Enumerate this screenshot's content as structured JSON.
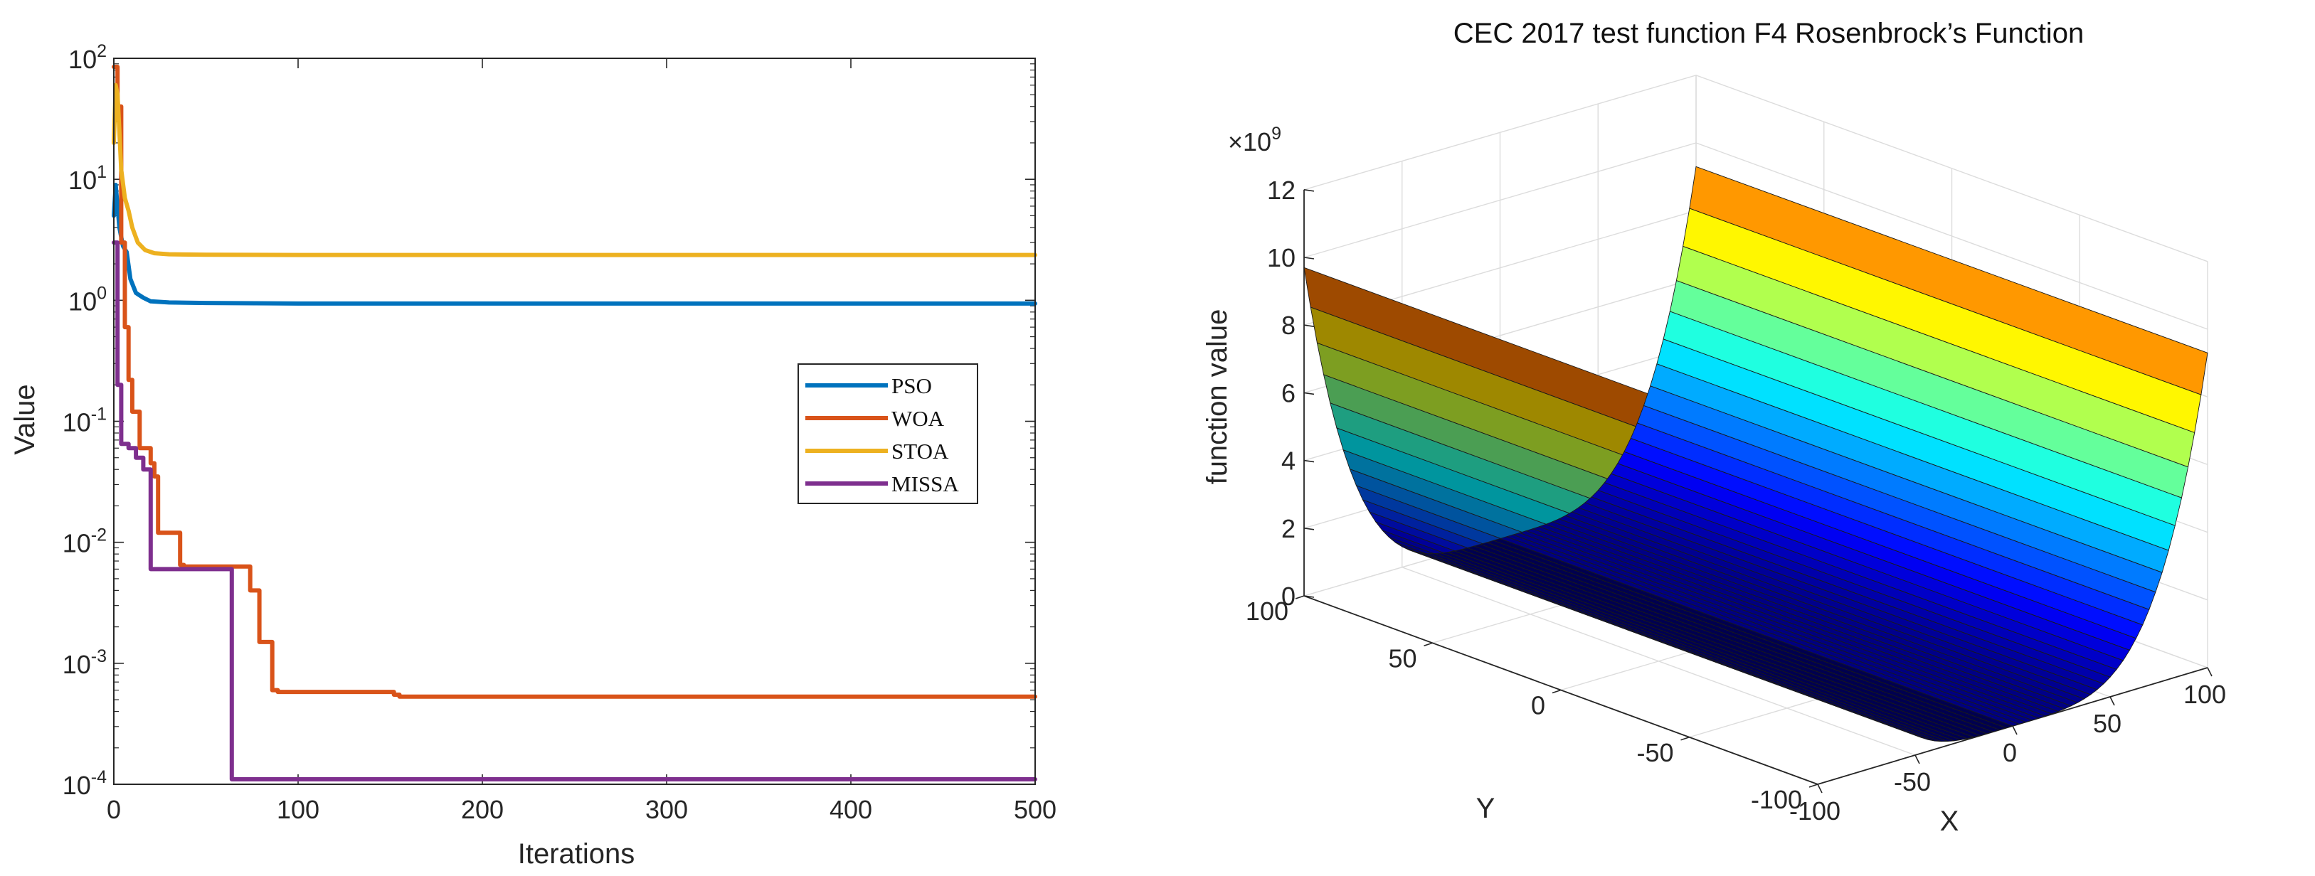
{
  "colors": {
    "PSO": "#0072BD",
    "WOA": "#D95319",
    "STOA": "#EDB120",
    "MISSA": "#7E2F8E"
  },
  "chart_data": [
    {
      "type": "line",
      "title": "",
      "xlabel": "Iterations",
      "ylabel": "Value",
      "yscale": "log",
      "xlim": [
        0,
        500
      ],
      "ylim": [
        0.0001,
        100
      ],
      "x_ticks": [
        0,
        100,
        200,
        300,
        400,
        500
      ],
      "x_tick_labels": [
        "0",
        "100",
        "200",
        "300",
        "400",
        "500"
      ],
      "y_ticks": [
        0.0001,
        0.001,
        0.01,
        0.1,
        1,
        10,
        100
      ],
      "y_tick_labels": [
        {
          "base": "10",
          "exp": "-4"
        },
        {
          "base": "10",
          "exp": "-3"
        },
        {
          "base": "10",
          "exp": "-2"
        },
        {
          "base": "10",
          "exp": "-1"
        },
        {
          "base": "10",
          "exp": "0"
        },
        {
          "base": "10",
          "exp": "1"
        },
        {
          "base": "10",
          "exp": "2"
        }
      ],
      "legend": {
        "position": "center-right"
      },
      "series": [
        {
          "name": "PSO",
          "step": false,
          "x": [
            0,
            1,
            3,
            5,
            7,
            9,
            12,
            16,
            20,
            30,
            50,
            100,
            200,
            300,
            400,
            500
          ],
          "y": [
            5,
            9,
            4,
            2.8,
            2.5,
            1.5,
            1.15,
            1.05,
            0.98,
            0.96,
            0.95,
            0.94,
            0.94,
            0.94,
            0.94,
            0.94
          ]
        },
        {
          "name": "WOA",
          "step": true,
          "x": [
            0,
            2,
            4,
            6,
            8,
            10,
            14,
            20,
            22,
            24,
            36,
            38,
            74,
            79,
            86,
            89,
            152,
            155,
            500
          ],
          "y": [
            85,
            40,
            3,
            0.6,
            0.22,
            0.12,
            0.06,
            0.045,
            0.035,
            0.012,
            0.0065,
            0.0063,
            0.004,
            0.0015,
            0.0006,
            0.00058,
            0.00055,
            0.00053,
            0.00053
          ]
        },
        {
          "name": "STOA",
          "step": false,
          "x": [
            0,
            1,
            2,
            3,
            4,
            6,
            8,
            10,
            13,
            17,
            22,
            30,
            50,
            100,
            200,
            300,
            400,
            500
          ],
          "y": [
            20,
            60,
            50,
            25,
            12,
            7,
            5.5,
            4,
            3,
            2.6,
            2.45,
            2.4,
            2.38,
            2.37,
            2.37,
            2.37,
            2.37,
            2.37
          ]
        },
        {
          "name": "MISSA",
          "step": true,
          "x": [
            0,
            2,
            4,
            8,
            12,
            16,
            20,
            64,
            500
          ],
          "y": [
            3,
            0.2,
            0.065,
            0.06,
            0.05,
            0.04,
            0.006,
            0.00011,
            0.00011
          ]
        }
      ]
    },
    {
      "type": "surface3d",
      "title": "CEC 2017 test function F4 Rosenbrock’s Function",
      "xlabel": "X",
      "ylabel": "Y",
      "zlabel": "function value",
      "z_multiplier": "×10",
      "z_multiplier_exp": "9",
      "xlim": [
        -100,
        100
      ],
      "ylim": [
        -100,
        100
      ],
      "zlim": [
        0,
        12000000000.0
      ],
      "x_ticks": [
        -100,
        -50,
        0,
        50,
        100
      ],
      "x_tick_labels": [
        "-100",
        "-50",
        "0",
        "50",
        "100"
      ],
      "y_ticks": [
        -100,
        -50,
        0,
        50,
        100
      ],
      "y_tick_labels": [
        "-100",
        "-50",
        "0",
        "50",
        "100"
      ],
      "z_ticks": [
        0,
        2,
        4,
        6,
        8,
        10,
        12
      ],
      "z_tick_labels": [
        "0",
        "2",
        "4",
        "6",
        "8",
        "10",
        "12"
      ],
      "colormap": "jet",
      "z_at_x_edges": [
        9700000000.0,
        9300000000.0
      ]
    }
  ]
}
